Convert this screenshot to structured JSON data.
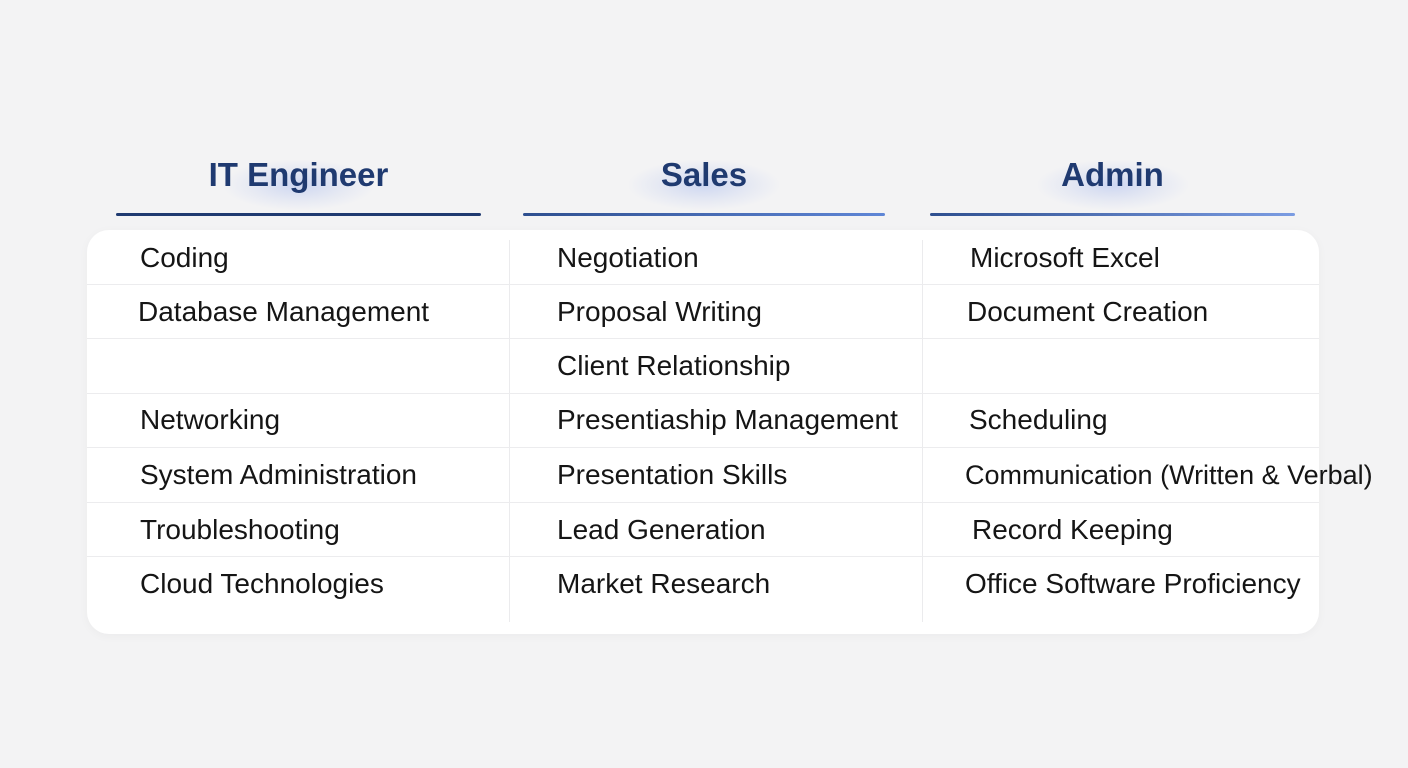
{
  "columns": [
    {
      "header": "IT Engineer",
      "items": [
        "Coding",
        "Database Management",
        "",
        "Networking",
        "System Administration",
        "Troubleshooting",
        "Cloud Technologies"
      ]
    },
    {
      "header": "Sales",
      "items": [
        "Negotiation",
        "Proposal Writing",
        "Client Relationship",
        "Presentiaship Management",
        "Presentation Skills",
        "Lead Generation",
        "Market Research"
      ]
    },
    {
      "header": "Admin",
      "items": [
        "Microsoft Excel",
        "Document Creation",
        "",
        "Scheduling",
        "Communication (Written & Verbal)",
        "Record Keeping",
        "Office Software Proficiency"
      ]
    }
  ],
  "colors": {
    "background": "#f3f3f4",
    "header_text": "#1f3a70",
    "accent": "#5f86d6",
    "card": "#ffffff"
  }
}
